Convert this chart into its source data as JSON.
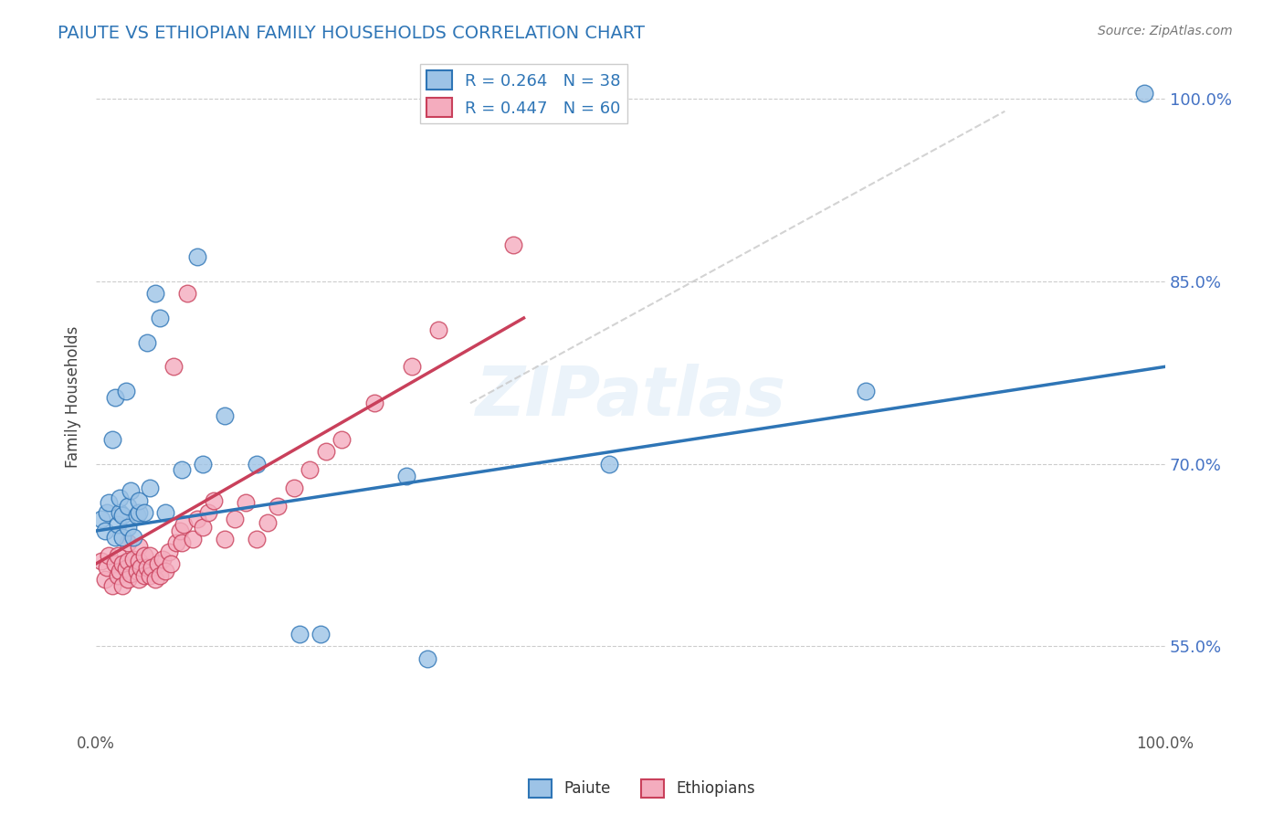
{
  "title": "PAIUTE VS ETHIOPIAN FAMILY HOUSEHOLDS CORRELATION CHART",
  "source_text": "Source: ZipAtlas.com",
  "ylabel": "Family Households",
  "xlim": [
    0.0,
    1.0
  ],
  "ylim": [
    0.48,
    1.03
  ],
  "yticks": [
    0.55,
    0.7,
    0.85,
    1.0
  ],
  "ytick_labels": [
    "55.0%",
    "70.0%",
    "85.0%",
    "100.0%"
  ],
  "xtick_labels": [
    "0.0%",
    "",
    "",
    "",
    "",
    "",
    "",
    "",
    "",
    "",
    "100.0%"
  ],
  "watermark": "ZIPatlas",
  "legend_r1": "R = 0.264",
  "legend_n1": "N = 38",
  "legend_r2": "R = 0.447",
  "legend_n2": "N = 60",
  "color_paiute_fill": "#9DC3E6",
  "color_paiute_edge": "#2E75B6",
  "color_ethiopian_fill": "#F4ACBE",
  "color_ethiopian_edge": "#C9405B",
  "color_paiute_line": "#2E75B6",
  "color_ethiopian_line": "#C9405B",
  "color_dashed": "#C8C8C8",
  "color_title": "#2E75B6",
  "color_source": "#777777",
  "color_right_ticks": "#4472C4",
  "color_grid": "#CCCCCC",
  "background_color": "#FFFFFF",
  "paiute_x": [
    0.005,
    0.008,
    0.01,
    0.012,
    0.015,
    0.018,
    0.018,
    0.02,
    0.022,
    0.022,
    0.025,
    0.025,
    0.028,
    0.03,
    0.03,
    0.032,
    0.035,
    0.038,
    0.04,
    0.04,
    0.045,
    0.048,
    0.05,
    0.055,
    0.06,
    0.065,
    0.08,
    0.095,
    0.1,
    0.12,
    0.15,
    0.19,
    0.21,
    0.29,
    0.31,
    0.48,
    0.72,
    0.98
  ],
  "paiute_y": [
    0.655,
    0.645,
    0.66,
    0.668,
    0.72,
    0.64,
    0.755,
    0.65,
    0.66,
    0.672,
    0.64,
    0.658,
    0.76,
    0.648,
    0.665,
    0.678,
    0.64,
    0.658,
    0.66,
    0.67,
    0.66,
    0.8,
    0.68,
    0.84,
    0.82,
    0.66,
    0.695,
    0.87,
    0.7,
    0.74,
    0.7,
    0.56,
    0.56,
    0.69,
    0.54,
    0.7,
    0.76,
    1.005
  ],
  "ethiopian_x": [
    0.005,
    0.008,
    0.01,
    0.012,
    0.015,
    0.018,
    0.02,
    0.02,
    0.022,
    0.025,
    0.025,
    0.028,
    0.03,
    0.03,
    0.03,
    0.032,
    0.035,
    0.038,
    0.04,
    0.04,
    0.04,
    0.042,
    0.045,
    0.045,
    0.048,
    0.05,
    0.05,
    0.052,
    0.055,
    0.058,
    0.06,
    0.062,
    0.065,
    0.068,
    0.07,
    0.072,
    0.075,
    0.078,
    0.08,
    0.082,
    0.085,
    0.09,
    0.095,
    0.1,
    0.105,
    0.11,
    0.12,
    0.13,
    0.14,
    0.15,
    0.16,
    0.17,
    0.185,
    0.2,
    0.215,
    0.23,
    0.26,
    0.295,
    0.32,
    0.39
  ],
  "ethiopian_y": [
    0.62,
    0.605,
    0.615,
    0.625,
    0.6,
    0.618,
    0.608,
    0.625,
    0.612,
    0.618,
    0.6,
    0.614,
    0.605,
    0.62,
    0.635,
    0.61,
    0.622,
    0.612,
    0.605,
    0.62,
    0.632,
    0.615,
    0.608,
    0.625,
    0.615,
    0.608,
    0.625,
    0.615,
    0.605,
    0.618,
    0.608,
    0.622,
    0.612,
    0.628,
    0.618,
    0.78,
    0.635,
    0.645,
    0.635,
    0.65,
    0.84,
    0.638,
    0.655,
    0.648,
    0.66,
    0.67,
    0.638,
    0.655,
    0.668,
    0.638,
    0.652,
    0.665,
    0.68,
    0.695,
    0.71,
    0.72,
    0.75,
    0.78,
    0.81,
    0.88
  ],
  "paiute_trendline": [
    0.0,
    1.0,
    0.645,
    0.78
  ],
  "ethiopian_trendline": [
    0.0,
    0.4,
    0.618,
    0.82
  ],
  "dashed_line": [
    0.35,
    0.85,
    0.75,
    0.99
  ]
}
